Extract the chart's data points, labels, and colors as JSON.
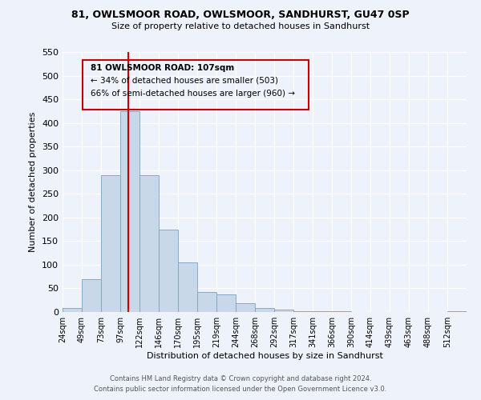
{
  "title": "81, OWLSMOOR ROAD, OWLSMOOR, SANDHURST, GU47 0SP",
  "subtitle": "Size of property relative to detached houses in Sandhurst",
  "xlabel": "Distribution of detached houses by size in Sandhurst",
  "ylabel": "Number of detached properties",
  "bar_color": "#c8d8e8",
  "bar_edge_color": "#7aa0c0",
  "background_color": "#eef2fa",
  "grid_color": "#ffffff",
  "tick_labels": [
    "24sqm",
    "49sqm",
    "73sqm",
    "97sqm",
    "122sqm",
    "146sqm",
    "170sqm",
    "195sqm",
    "219sqm",
    "244sqm",
    "268sqm",
    "292sqm",
    "317sqm",
    "341sqm",
    "366sqm",
    "390sqm",
    "414sqm",
    "439sqm",
    "463sqm",
    "488sqm",
    "512sqm"
  ],
  "bar_values": [
    8,
    70,
    290,
    425,
    290,
    175,
    105,
    43,
    38,
    18,
    8,
    5,
    2,
    2,
    2,
    0,
    0,
    0,
    0,
    0,
    2
  ],
  "ylim": [
    0,
    550
  ],
  "yticks": [
    0,
    50,
    100,
    150,
    200,
    250,
    300,
    350,
    400,
    450,
    500,
    550
  ],
  "property_line_label": "81 OWLSMOOR ROAD: 107sqm",
  "annotation_line1": "← 34% of detached houses are smaller (503)",
  "annotation_line2": "66% of semi-detached houses are larger (960) →",
  "footer_line1": "Contains HM Land Registry data © Crown copyright and database right 2024.",
  "footer_line2": "Contains public sector information licensed under the Open Government Licence v3.0.",
  "box_edge_color": "#cc0000",
  "property_line_color": "#cc0000",
  "n_bars": 21
}
